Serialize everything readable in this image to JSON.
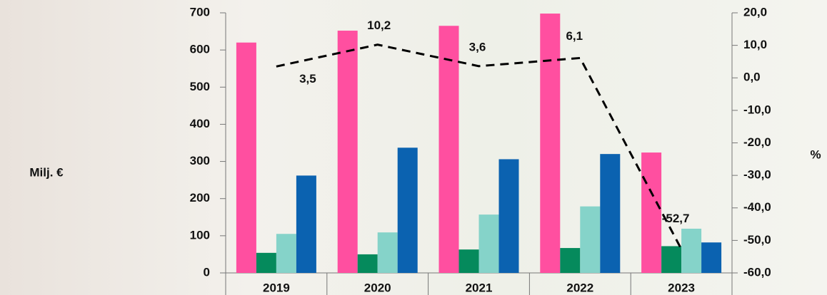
{
  "chart_data": {
    "type": "bar-line",
    "categories": [
      "2019",
      "2020",
      "2021",
      "2022",
      "2023"
    ],
    "series": [
      {
        "color": "#ff4fa0",
        "values": [
          620,
          652,
          665,
          698,
          324
        ]
      },
      {
        "color": "#058a5c",
        "values": [
          54,
          50,
          63,
          67,
          72
        ]
      },
      {
        "color": "#85d3c9",
        "values": [
          105,
          109,
          157,
          179,
          119
        ]
      },
      {
        "color": "#0b62b0",
        "values": [
          262,
          337,
          306,
          320,
          82
        ]
      },
      {
        "type": "line",
        "axis": "y2",
        "color": "#000000",
        "dashed": true,
        "values": [
          3.5,
          10.2,
          3.6,
          6.1,
          -52.7
        ],
        "value_labels": [
          "3,5",
          "10,2",
          "3,6",
          "6,1",
          "-52,7"
        ]
      }
    ],
    "ylabel": "Milj. €",
    "y2label": "%",
    "ylim": [
      0,
      700
    ],
    "yticks": [
      0,
      100,
      200,
      300,
      400,
      500,
      600,
      700
    ],
    "y2lim": [
      -60,
      20
    ],
    "y2ticks": [
      {
        "value": -60,
        "label": "-60,0"
      },
      {
        "value": -50,
        "label": "-50,0"
      },
      {
        "value": -40,
        "label": "-40,0"
      },
      {
        "value": -30,
        "label": "-30,0"
      },
      {
        "value": -20,
        "label": "-20,0"
      },
      {
        "value": -10,
        "label": "-10,0"
      },
      {
        "value": 0,
        "label": "0,0"
      },
      {
        "value": 10,
        "label": "10,0"
      },
      {
        "value": 20,
        "label": "20,0"
      }
    ]
  }
}
